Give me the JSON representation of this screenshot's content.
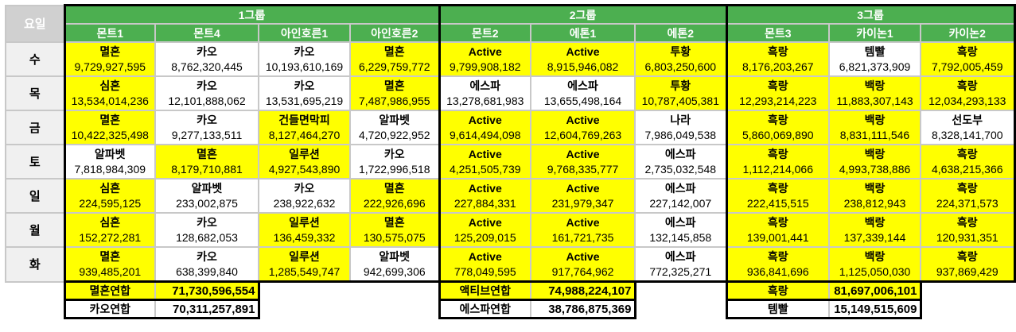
{
  "day_header": "요일",
  "colors": {
    "header_green": "#4caf50",
    "highlight_yellow": "#ffff00"
  },
  "groups": [
    {
      "label": "1그룹",
      "columns": [
        "몬트1",
        "몬트4",
        "아인호른1",
        "아인호른2"
      ]
    },
    {
      "label": "2그룹",
      "columns": [
        "몬트2",
        "에톤1",
        "에톤2"
      ]
    },
    {
      "label": "3그룹",
      "columns": [
        "몬트3",
        "카이논1",
        "카이논2"
      ]
    }
  ],
  "rows": [
    {
      "day": "수",
      "cells": [
        {
          "name": "멸혼",
          "value": "9,729,927,595",
          "hl": true
        },
        {
          "name": "카오",
          "value": "8,762,320,445",
          "hl": false
        },
        {
          "name": "카오",
          "value": "10,193,610,169",
          "hl": false
        },
        {
          "name": "멸혼",
          "value": "6,229,759,772",
          "hl": true
        },
        {
          "name": "Active",
          "value": "9,799,908,182",
          "hl": true
        },
        {
          "name": "Active",
          "value": "8,915,946,082",
          "hl": true
        },
        {
          "name": "투황",
          "value": "6,803,250,600",
          "hl": true
        },
        {
          "name": "흑랑",
          "value": "8,176,203,267",
          "hl": true
        },
        {
          "name": "템빨",
          "value": "6,821,373,909",
          "hl": false
        },
        {
          "name": "흑랑",
          "value": "7,792,005,459",
          "hl": true
        }
      ]
    },
    {
      "day": "목",
      "cells": [
        {
          "name": "심혼",
          "value": "13,534,014,236",
          "hl": true
        },
        {
          "name": "카오",
          "value": "12,101,888,062",
          "hl": false
        },
        {
          "name": "카오",
          "value": "13,531,695,219",
          "hl": false
        },
        {
          "name": "멸혼",
          "value": "7,487,986,955",
          "hl": true
        },
        {
          "name": "에스파",
          "value": "13,278,681,983",
          "hl": false
        },
        {
          "name": "에스파",
          "value": "13,655,498,164",
          "hl": false
        },
        {
          "name": "투황",
          "value": "10,787,405,381",
          "hl": true
        },
        {
          "name": "흑랑",
          "value": "12,293,214,223",
          "hl": true
        },
        {
          "name": "백랑",
          "value": "11,883,307,143",
          "hl": true
        },
        {
          "name": "흑랑",
          "value": "12,034,293,133",
          "hl": true
        }
      ]
    },
    {
      "day": "금",
      "cells": [
        {
          "name": "멸혼",
          "value": "10,422,325,498",
          "hl": true
        },
        {
          "name": "카오",
          "value": "9,277,133,511",
          "hl": false
        },
        {
          "name": "건들면막피",
          "value": "8,127,464,270",
          "hl": true
        },
        {
          "name": "알파벳",
          "value": "4,720,922,952",
          "hl": false
        },
        {
          "name": "Active",
          "value": "9,614,494,098",
          "hl": true
        },
        {
          "name": "Active",
          "value": "12,604,769,263",
          "hl": true
        },
        {
          "name": "나라",
          "value": "7,986,049,538",
          "hl": false
        },
        {
          "name": "흑랑",
          "value": "5,860,069,890",
          "hl": true
        },
        {
          "name": "백랑",
          "value": "8,831,111,546",
          "hl": true
        },
        {
          "name": "선도부",
          "value": "8,328,141,700",
          "hl": false
        }
      ]
    },
    {
      "day": "토",
      "cells": [
        {
          "name": "알파벳",
          "value": "7,818,984,309",
          "hl": false
        },
        {
          "name": "멸혼",
          "value": "8,179,710,881",
          "hl": true
        },
        {
          "name": "일루션",
          "value": "4,927,543,890",
          "hl": true
        },
        {
          "name": "카오",
          "value": "1,722,996,518",
          "hl": false
        },
        {
          "name": "Active",
          "value": "4,251,505,739",
          "hl": true
        },
        {
          "name": "Active",
          "value": "9,768,335,777",
          "hl": true
        },
        {
          "name": "에스파",
          "value": "2,735,032,548",
          "hl": false
        },
        {
          "name": "흑랑",
          "value": "1,112,214,066",
          "hl": true
        },
        {
          "name": "백랑",
          "value": "4,993,738,886",
          "hl": true
        },
        {
          "name": "흑랑",
          "value": "4,638,215,366",
          "hl": true
        }
      ]
    },
    {
      "day": "일",
      "cells": [
        {
          "name": "심혼",
          "value": "224,595,125",
          "hl": true
        },
        {
          "name": "알파벳",
          "value": "233,002,875",
          "hl": false
        },
        {
          "name": "카오",
          "value": "238,922,632",
          "hl": false
        },
        {
          "name": "멸혼",
          "value": "222,926,696",
          "hl": true
        },
        {
          "name": "Active",
          "value": "227,884,331",
          "hl": true
        },
        {
          "name": "Active",
          "value": "231,979,347",
          "hl": true
        },
        {
          "name": "에스파",
          "value": "227,142,007",
          "hl": false
        },
        {
          "name": "흑랑",
          "value": "222,415,515",
          "hl": true
        },
        {
          "name": "백랑",
          "value": "238,812,943",
          "hl": true
        },
        {
          "name": "흑랑",
          "value": "224,371,573",
          "hl": true
        }
      ]
    },
    {
      "day": "월",
      "cells": [
        {
          "name": "심혼",
          "value": "152,272,281",
          "hl": true
        },
        {
          "name": "카오",
          "value": "128,682,053",
          "hl": false
        },
        {
          "name": "일루션",
          "value": "136,459,332",
          "hl": true
        },
        {
          "name": "멸혼",
          "value": "130,575,075",
          "hl": true
        },
        {
          "name": "Active",
          "value": "125,209,015",
          "hl": true
        },
        {
          "name": "Active",
          "value": "161,721,735",
          "hl": true
        },
        {
          "name": "에스파",
          "value": "132,145,858",
          "hl": false
        },
        {
          "name": "흑랑",
          "value": "139,001,441",
          "hl": true
        },
        {
          "name": "백랑",
          "value": "137,339,144",
          "hl": true
        },
        {
          "name": "흑랑",
          "value": "120,931,351",
          "hl": true
        }
      ]
    },
    {
      "day": "화",
      "cells": [
        {
          "name": "멸혼",
          "value": "939,485,201",
          "hl": true
        },
        {
          "name": "카오",
          "value": "638,399,840",
          "hl": false
        },
        {
          "name": "일루션",
          "value": "1,285,549,747",
          "hl": true
        },
        {
          "name": "알파벳",
          "value": "942,699,306",
          "hl": false
        },
        {
          "name": "Active",
          "value": "778,049,595",
          "hl": true
        },
        {
          "name": "Active",
          "value": "917,764,962",
          "hl": true
        },
        {
          "name": "에스파",
          "value": "772,325,271",
          "hl": false
        },
        {
          "name": "흑랑",
          "value": "936,841,696",
          "hl": true
        },
        {
          "name": "백랑",
          "value": "1,125,050,030",
          "hl": true
        },
        {
          "name": "흑랑",
          "value": "937,869,429",
          "hl": true
        }
      ]
    }
  ],
  "summaries": [
    [
      {
        "label": "멸흔연합",
        "value": "71,730,596,554",
        "hl": true
      },
      {
        "label": "카오연합",
        "value": "70,311,257,891",
        "hl": false
      }
    ],
    [
      {
        "label": "액티브연합",
        "value": "74,988,224,107",
        "hl": true
      },
      {
        "label": "에스파연합",
        "value": "38,786,875,369",
        "hl": false
      }
    ],
    [
      {
        "label": "흑랑",
        "value": "81,697,006,101",
        "hl": true
      },
      {
        "label": "템빨",
        "value": "15,149,515,609",
        "hl": false
      }
    ]
  ]
}
